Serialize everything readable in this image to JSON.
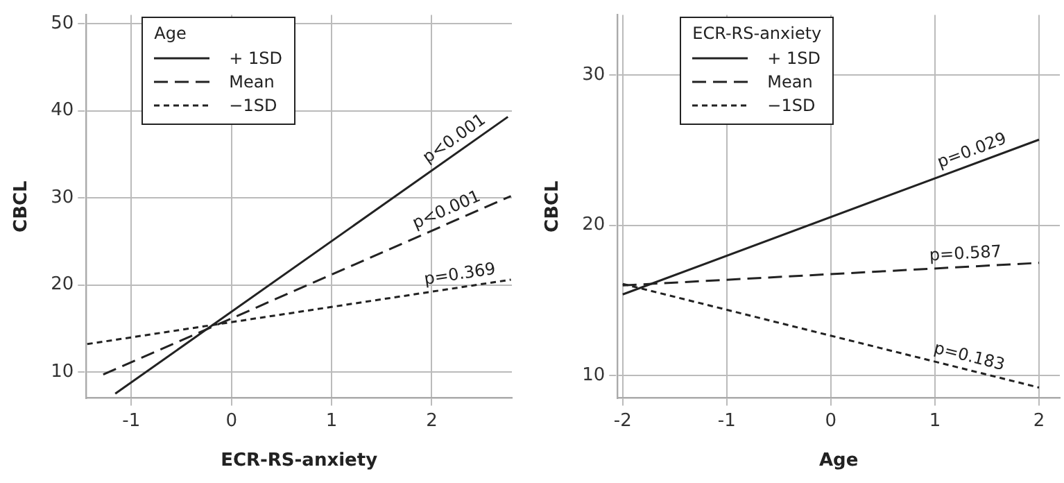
{
  "chart_data": [
    {
      "type": "line",
      "xlabel": "ECR-RS-anxiety",
      "ylabel": "CBCL",
      "legend_title": "Age",
      "legend": "top left",
      "grid": true,
      "marker": "none",
      "xlim": [
        -1.45,
        2.8
      ],
      "ylim": [
        7,
        51
      ],
      "xticks": [
        -1,
        0,
        1,
        2
      ],
      "yticks": [
        10,
        20,
        30,
        40,
        50
      ],
      "series": [
        {
          "name": "+ 1SD",
          "color": "#222222",
          "line_style": "solid",
          "x": [
            -1.16,
            2.76
          ],
          "values": [
            7.5,
            39.3
          ]
        },
        {
          "name": "Mean",
          "color": "#222222",
          "line_style": "dashed",
          "x": [
            -1.28,
            2.79
          ],
          "values": [
            9.7,
            30.2
          ]
        },
        {
          "name": "−1SD",
          "color": "#222222",
          "line_style": "dotted",
          "x": [
            -1.44,
            2.79
          ],
          "values": [
            13.2,
            20.6
          ]
        }
      ],
      "annotations": [
        {
          "text": "p<0.001",
          "x": 2.3,
          "y": 35.57
        },
        {
          "text": "p<0.001",
          "x": 2.2,
          "y": 27.23
        },
        {
          "text": "p=0.369",
          "x": 2.3,
          "y": 19.74
        }
      ]
    },
    {
      "type": "line",
      "xlabel": "Age",
      "ylabel": "CBCL",
      "legend_title": "ECR-RS-anxiety",
      "legend": "top left",
      "grid": true,
      "marker": "none",
      "xlim": [
        -2.05,
        2.2
      ],
      "ylim": [
        8.5,
        34
      ],
      "xticks": [
        -2,
        -1,
        0,
        1,
        2
      ],
      "yticks": [
        10,
        20,
        30
      ],
      "series": [
        {
          "name": "+ 1SD",
          "color": "#222222",
          "line_style": "solid",
          "x": [
            -2,
            2
          ],
          "values": [
            15.4,
            25.7
          ]
        },
        {
          "name": "Mean",
          "color": "#222222",
          "line_style": "dashed",
          "x": [
            -2,
            2
          ],
          "values": [
            16,
            17.5
          ]
        },
        {
          "name": "−1SD",
          "color": "#222222",
          "line_style": "dotted",
          "x": [
            -2,
            2
          ],
          "values": [
            16.1,
            9.2
          ]
        }
      ],
      "annotations": [
        {
          "text": "p=0.029",
          "x": 1.4,
          "y": 24.16
        },
        {
          "text": "p=0.587",
          "x": 1.3,
          "y": 17.24
        },
        {
          "text": "p=0.183",
          "x": 1.3,
          "y": 10.41
        }
      ]
    }
  ]
}
